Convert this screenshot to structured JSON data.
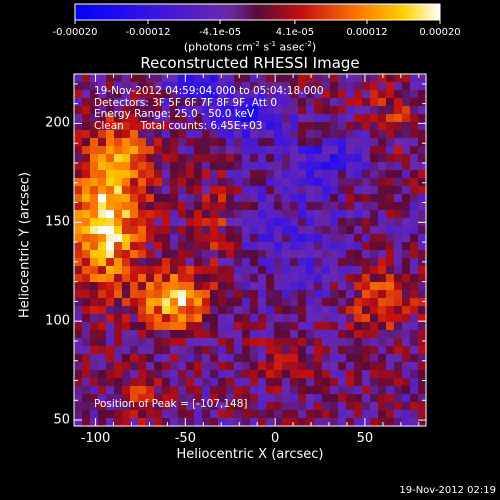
{
  "colorbar": {
    "ticks": [
      "-0.00020",
      "-0.00012",
      "-4.1e-05",
      "4.1e-05",
      "0.00012",
      "0.00020"
    ],
    "tick_values": [
      -0.0002,
      -0.00012,
      -4.1e-05,
      4.1e-05,
      0.00012,
      0.0002
    ],
    "range": [
      -0.0002,
      0.0002
    ],
    "units_prefix": "(photons cm",
    "units_exp1": "-2",
    "units_mid": " s",
    "units_exp2": "-1",
    "units_mid2": " asec",
    "units_exp3": "-2",
    "units_suffix": ")"
  },
  "annotations": {
    "line1": "19-Nov-2012 04:59:04.000 to 05:04:18.000",
    "line2": "Detectors: 3F 5F 6F 7F 8F 9F, Att 0",
    "line3": "Energy Range: 25.0 - 50.0 keV",
    "line4": "Clean     Total counts: 6.45E+03",
    "peak": "Position of Peak = [-107,148]"
  },
  "footer": "19-Nov-2012 02:19",
  "chart_data": {
    "type": "heatmap",
    "title": "Reconstructed RHESSI Image",
    "xlabel": "Heliocentric X (arcsec)",
    "ylabel": "Heliocentric Y (arcsec)",
    "xlim": [
      -112,
      84
    ],
    "ylim": [
      47,
      225
    ],
    "xticks": [
      -100,
      -50,
      0,
      50
    ],
    "yticks": [
      50,
      100,
      150,
      200
    ],
    "xtick_labels": [
      "-100",
      "-50",
      "0",
      "50"
    ],
    "ytick_labels": [
      "50",
      "100",
      "150",
      "200"
    ],
    "colormap": "hot-cold (blue-purple-red-yellow-white)",
    "peak_position": [
      -107,
      148
    ],
    "regions": [
      {
        "x": -95,
        "y": 150,
        "sx": 14,
        "sy": 22,
        "amp": 1.0
      },
      {
        "x": -55,
        "y": 110,
        "sx": 14,
        "sy": 10,
        "amp": 0.85
      },
      {
        "x": -85,
        "y": 185,
        "sx": 12,
        "sy": 12,
        "amp": 0.45
      },
      {
        "x": -35,
        "y": 150,
        "sx": 10,
        "sy": 14,
        "amp": 0.35
      },
      {
        "x": 60,
        "y": 112,
        "sx": 14,
        "sy": 12,
        "amp": 0.45
      },
      {
        "x": 65,
        "y": 205,
        "sx": 10,
        "sy": 12,
        "amp": 0.3
      },
      {
        "x": 20,
        "y": 205,
        "sx": 12,
        "sy": 12,
        "amp": 0.25
      },
      {
        "x": -75,
        "y": 60,
        "sx": 10,
        "sy": 8,
        "amp": 0.3
      },
      {
        "x": 5,
        "y": 80,
        "sx": 14,
        "sy": 10,
        "amp": 0.2
      },
      {
        "x": 40,
        "y": 170,
        "sx": 8,
        "sy": 8,
        "amp": 0.25
      },
      {
        "x": -10,
        "y": 205,
        "sx": 22,
        "sy": 9,
        "amp": -0.55
      },
      {
        "x": 30,
        "y": 180,
        "sx": 16,
        "sy": 10,
        "amp": -0.45
      },
      {
        "x": -45,
        "y": 222,
        "sx": 12,
        "sy": 6,
        "amp": -0.5
      },
      {
        "x": 10,
        "y": 140,
        "sx": 25,
        "sy": 25,
        "amp": -0.25
      }
    ]
  }
}
